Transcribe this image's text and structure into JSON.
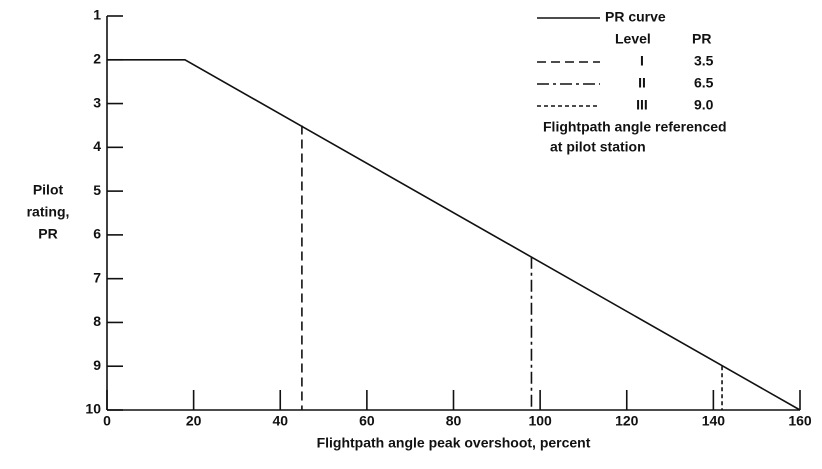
{
  "chart_data": {
    "type": "line",
    "xlabel": "Flightpath angle peak overshoot, percent",
    "ylabel": [
      "Pilot",
      "rating,",
      "PR"
    ],
    "x": [
      0,
      18,
      160
    ],
    "series": [
      {
        "name": "PR curve",
        "color": "#111111",
        "values": [
          2,
          2,
          10
        ]
      }
    ],
    "levels": {
      "header": [
        "Level",
        "PR"
      ],
      "names": [
        "I",
        "II",
        "III"
      ],
      "x": [
        45,
        98,
        142
      ],
      "values": [
        3.5,
        6.5,
        9
      ],
      "value_labels": [
        "3.5",
        "6.5",
        "9.0"
      ],
      "dashes": [
        "9 5",
        "12 4 3 4",
        "4 3"
      ]
    },
    "annotation": [
      "Flightpath angle referenced",
      "at pilot station"
    ],
    "xlim": [
      0,
      160
    ],
    "xticks": [
      0,
      20,
      40,
      60,
      80,
      100,
      120,
      140,
      160
    ],
    "ylim": [
      10,
      1
    ],
    "yticks": [
      1,
      2,
      3,
      4,
      5,
      6,
      7,
      8,
      9,
      10
    ]
  }
}
